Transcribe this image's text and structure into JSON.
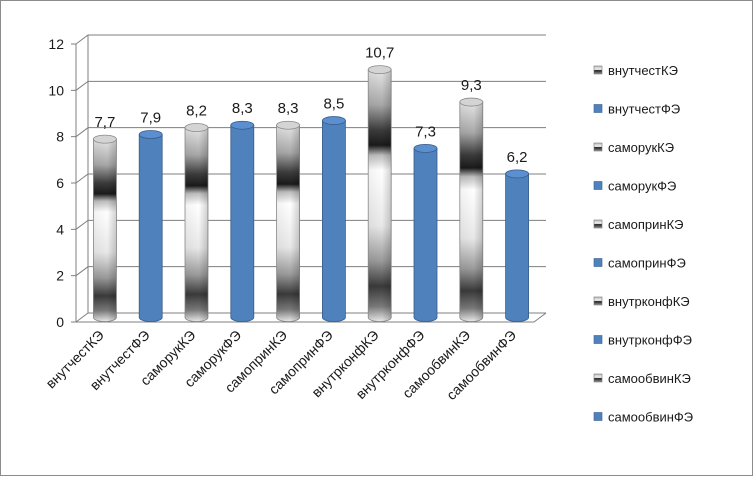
{
  "chart_data": {
    "type": "bar",
    "style": "3d-cylinder",
    "categories": [
      "внутчестКЭ",
      "внутчестФЭ",
      "саморукКЭ",
      "саморукФЭ",
      "самопринКЭ",
      "самопринФЭ",
      "внутрконфКЭ",
      "внутрконфФЭ",
      "самообвинКЭ",
      "самообвинФЭ"
    ],
    "values": [
      7.7,
      7.9,
      8.2,
      8.3,
      8.3,
      8.5,
      10.7,
      7.3,
      9.3,
      6.2
    ],
    "data_labels": [
      "7,7",
      "7,9",
      "8,2",
      "8,3",
      "8,3",
      "8,5",
      "10,7",
      "7,3",
      "9,3",
      "6,2"
    ],
    "fill_kind": [
      "chrome",
      "blue",
      "chrome",
      "blue",
      "chrome",
      "blue",
      "chrome",
      "blue",
      "chrome",
      "blue"
    ],
    "ylim": [
      0,
      12
    ],
    "yticks": [
      0,
      2,
      4,
      6,
      8,
      10,
      12
    ],
    "grid": true,
    "legend_position": "right",
    "title": "",
    "xlabel": "",
    "ylabel": "",
    "colors": {
      "blue": "#4f81bd",
      "blue_dark": "#385d8a",
      "grid": "#7f7f7f"
    }
  }
}
